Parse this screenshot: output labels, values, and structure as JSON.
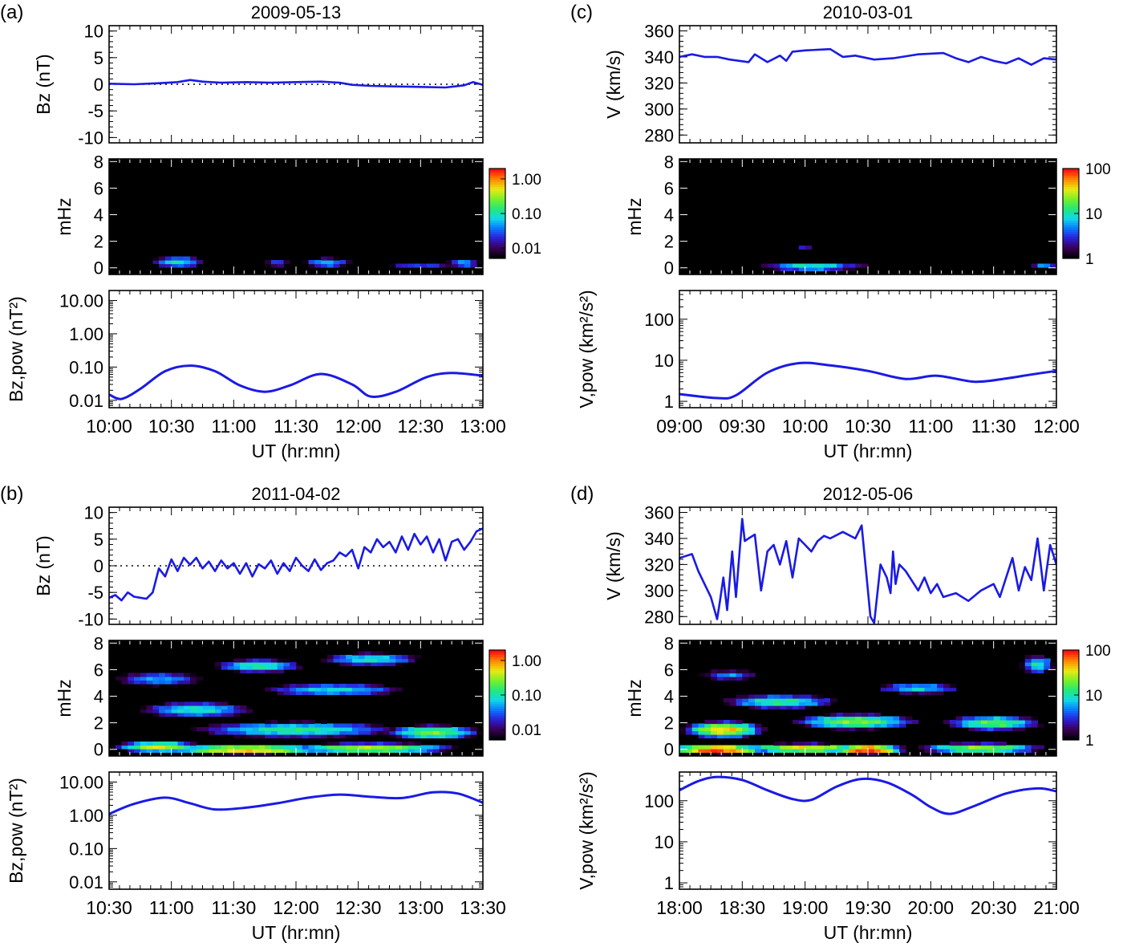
{
  "figure": {
    "time_xlabel": "UT (hr:mn)",
    "freq_ylabel": "mHz",
    "freq_ticks": [
      0,
      2,
      4,
      6,
      8
    ],
    "freq_ylim": [
      -0.5,
      8.2
    ],
    "colorbar_colors": [
      "#000000",
      "#3b0058",
      "#2a1fd6",
      "#0a78ff",
      "#10d9e8",
      "#22e87a",
      "#78f02a",
      "#e8ea14",
      "#ff8c00",
      "#ff1010"
    ],
    "line_color": "#1a1ae6"
  },
  "chart_data": [
    {
      "id": "a",
      "panel_label": "(a)",
      "title": "2009-05-13",
      "type": "line",
      "x_ticks": [
        "10:00",
        "10:30",
        "11:00",
        "11:30",
        "12:00",
        "12:30",
        "13:00"
      ],
      "x_range_hours": [
        10.0,
        13.0
      ],
      "top": {
        "ylabel": "Bz (nT)",
        "yticks": [
          -10,
          -5,
          0,
          5,
          10
        ],
        "ylim": [
          -11,
          11
        ],
        "zero_line": true,
        "x_hours": [
          10.0,
          10.2,
          10.4,
          10.55,
          10.65,
          10.75,
          10.9,
          11.1,
          11.3,
          11.5,
          11.7,
          11.85,
          11.95,
          12.1,
          12.3,
          12.5,
          12.7,
          12.85,
          12.92,
          13.0
        ],
        "values": [
          0.1,
          0.0,
          0.2,
          0.4,
          0.8,
          0.5,
          0.3,
          0.4,
          0.3,
          0.4,
          0.5,
          0.3,
          -0.1,
          -0.3,
          -0.4,
          -0.5,
          -0.6,
          -0.2,
          0.4,
          -0.1
        ]
      },
      "spectrogram": {
        "colorbar_ticks": [
          "1.00",
          "0.10",
          "0.01"
        ],
        "colorbar_log_range": [
          -2.3,
          0.3
        ],
        "blobs": [
          {
            "t": 10.55,
            "f": 0.45,
            "sigma_t": 0.22,
            "sigma_f": 0.45,
            "log": -1.05
          },
          {
            "t": 11.35,
            "f": 0.35,
            "sigma_t": 0.15,
            "sigma_f": 0.35,
            "log": -1.6
          },
          {
            "t": 11.75,
            "f": 0.4,
            "sigma_t": 0.2,
            "sigma_f": 0.4,
            "log": -1.2
          },
          {
            "t": 12.5,
            "f": 0.2,
            "sigma_t": 0.35,
            "sigma_f": 0.3,
            "log": -1.6
          },
          {
            "t": 12.85,
            "f": 0.35,
            "sigma_t": 0.15,
            "sigma_f": 0.35,
            "log": -1.25
          }
        ]
      },
      "power": {
        "ylabel": "Bz,pow (nT²)",
        "log_ticks": [
          "10.00",
          "1.00",
          "0.10",
          "0.01"
        ],
        "log_tick_values": [
          10,
          1,
          0.1,
          0.01
        ],
        "ylim": [
          0.006,
          20
        ],
        "x_hours": [
          10.0,
          10.1,
          10.25,
          10.45,
          10.65,
          10.85,
          11.05,
          11.25,
          11.45,
          11.7,
          11.95,
          12.1,
          12.3,
          12.55,
          12.75,
          13.0
        ],
        "values": [
          0.015,
          0.011,
          0.022,
          0.075,
          0.11,
          0.075,
          0.028,
          0.018,
          0.028,
          0.062,
          0.03,
          0.013,
          0.018,
          0.05,
          0.066,
          0.055
        ]
      }
    },
    {
      "id": "c",
      "panel_label": "(c)",
      "title": "2010-03-01",
      "type": "line",
      "x_ticks": [
        "09:00",
        "09:30",
        "10:00",
        "10:30",
        "11:00",
        "11:30",
        "12:00"
      ],
      "x_range_hours": [
        9.0,
        12.0
      ],
      "top": {
        "ylabel": "V (km/s)",
        "yticks": [
          280,
          300,
          320,
          340,
          360
        ],
        "ylim": [
          274,
          364
        ],
        "zero_line": false,
        "x_hours": [
          9.0,
          9.1,
          9.2,
          9.3,
          9.4,
          9.55,
          9.6,
          9.7,
          9.8,
          9.85,
          9.9,
          10.0,
          10.2,
          10.3,
          10.4,
          10.55,
          10.7,
          10.9,
          11.1,
          11.2,
          11.3,
          11.4,
          11.5,
          11.6,
          11.7,
          11.8,
          11.9,
          12.0
        ],
        "values": [
          340,
          342,
          340,
          340,
          338,
          336,
          342,
          336,
          341,
          337,
          344,
          345,
          346,
          340,
          341,
          338,
          339,
          342,
          343,
          339,
          336,
          340,
          337,
          335,
          339,
          334,
          339,
          338
        ]
      },
      "spectrogram": {
        "colorbar_ticks": [
          "100",
          "10",
          "1"
        ],
        "colorbar_log_range": [
          0.0,
          2.0
        ],
        "blobs": [
          {
            "t": 10.05,
            "f": 0.1,
            "sigma_t": 0.45,
            "sigma_f": 0.35,
            "log": 1.05
          },
          {
            "t": 10.35,
            "f": 0.1,
            "sigma_t": 0.25,
            "sigma_f": 0.3,
            "log": 0.55
          },
          {
            "t": 10.0,
            "f": 1.6,
            "sigma_t": 0.12,
            "sigma_f": 0.22,
            "log": 0.45
          },
          {
            "t": 11.9,
            "f": 0.15,
            "sigma_t": 0.15,
            "sigma_f": 0.3,
            "log": 0.7
          }
        ]
      },
      "power": {
        "ylabel": "V,pow (km²/s²)",
        "log_ticks": [
          "100",
          "10",
          "1"
        ],
        "log_tick_values": [
          100,
          10,
          1
        ],
        "ylim": [
          0.7,
          500
        ],
        "x_hours": [
          9.0,
          9.3,
          9.45,
          9.7,
          9.95,
          10.2,
          10.5,
          10.8,
          11.05,
          11.35,
          11.6,
          11.8,
          12.0
        ],
        "values": [
          1.5,
          1.2,
          1.4,
          5,
          8.5,
          7.5,
          5.5,
          3.5,
          4.2,
          3.0,
          3.6,
          4.5,
          5.5
        ]
      }
    },
    {
      "id": "b",
      "panel_label": "(b)",
      "title": "2011-04-02",
      "type": "line",
      "x_ticks": [
        "10:30",
        "11:00",
        "11:30",
        "12:00",
        "12:30",
        "13:00",
        "13:30"
      ],
      "x_range_hours": [
        10.5,
        13.5
      ],
      "top": {
        "ylabel": "Bz (nT)",
        "yticks": [
          -10,
          -5,
          0,
          5,
          10
        ],
        "ylim": [
          -11,
          11
        ],
        "zero_line": true,
        "x_hours": [
          10.5,
          10.55,
          10.6,
          10.65,
          10.7,
          10.75,
          10.8,
          10.85,
          10.9,
          10.95,
          11.0,
          11.05,
          11.1,
          11.15,
          11.2,
          11.25,
          11.3,
          11.35,
          11.4,
          11.45,
          11.5,
          11.55,
          11.6,
          11.65,
          11.7,
          11.75,
          11.8,
          11.85,
          11.9,
          11.95,
          12.0,
          12.05,
          12.1,
          12.15,
          12.2,
          12.25,
          12.3,
          12.35,
          12.4,
          12.45,
          12.5,
          12.55,
          12.6,
          12.65,
          12.7,
          12.75,
          12.8,
          12.85,
          12.9,
          12.95,
          13.0,
          13.05,
          13.1,
          13.15,
          13.2,
          13.25,
          13.3,
          13.35,
          13.4,
          13.45,
          13.5
        ],
        "values": [
          -6,
          -5.5,
          -6.5,
          -5,
          -5.8,
          -6,
          -6.2,
          -5,
          -0.5,
          -2,
          1.2,
          -1,
          1.5,
          0.2,
          1.5,
          -0.5,
          0.8,
          -1,
          1,
          -0.5,
          0.5,
          -1.5,
          0.5,
          -2,
          0.3,
          -0.5,
          1,
          -1.5,
          0.5,
          -1,
          1.5,
          0,
          -1,
          1.2,
          -0.8,
          0.5,
          1,
          2.5,
          1.8,
          3,
          -0.5,
          3.5,
          2.5,
          5,
          3.5,
          4.5,
          2.5,
          5.5,
          3,
          6,
          4,
          5.5,
          2.5,
          5,
          1,
          4.5,
          5,
          3,
          4.5,
          6.5,
          7
        ]
      },
      "spectrogram": {
        "colorbar_ticks": [
          "1.00",
          "0.10",
          "0.01"
        ],
        "colorbar_log_range": [
          -2.3,
          0.3
        ],
        "blobs": [
          {
            "t": 11.6,
            "f": 0.0,
            "sigma_t": 0.55,
            "sigma_f": 0.3,
            "log": -0.1
          },
          {
            "t": 12.6,
            "f": 0.1,
            "sigma_t": 0.6,
            "sigma_f": 0.35,
            "log": -0.4
          },
          {
            "t": 10.9,
            "f": 0.2,
            "sigma_t": 0.3,
            "sigma_f": 0.35,
            "log": -0.3
          },
          {
            "t": 12.0,
            "f": 1.5,
            "sigma_t": 0.8,
            "sigma_f": 0.6,
            "log": -0.9
          },
          {
            "t": 13.1,
            "f": 1.3,
            "sigma_t": 0.35,
            "sigma_f": 0.5,
            "log": -0.6
          },
          {
            "t": 11.2,
            "f": 3.0,
            "sigma_t": 0.45,
            "sigma_f": 0.6,
            "log": -1.0
          },
          {
            "t": 12.3,
            "f": 4.5,
            "sigma_t": 0.6,
            "sigma_f": 0.5,
            "log": -1.1
          },
          {
            "t": 11.7,
            "f": 6.3,
            "sigma_t": 0.35,
            "sigma_f": 0.5,
            "log": -0.9
          },
          {
            "t": 12.6,
            "f": 6.8,
            "sigma_t": 0.4,
            "sigma_f": 0.5,
            "log": -1.0
          },
          {
            "t": 10.9,
            "f": 5.3,
            "sigma_t": 0.4,
            "sigma_f": 0.6,
            "log": -1.3
          }
        ]
      },
      "power": {
        "ylabel": "Bz,pow (nT²)",
        "log_ticks": [
          "10.00",
          "1.00",
          "0.10",
          "0.01"
        ],
        "log_tick_values": [
          10,
          1,
          0.1,
          0.01
        ],
        "ylim": [
          0.006,
          20
        ],
        "x_hours": [
          10.5,
          10.7,
          10.95,
          11.15,
          11.35,
          11.6,
          11.85,
          12.1,
          12.35,
          12.6,
          12.85,
          13.1,
          13.3,
          13.5
        ],
        "values": [
          1.1,
          2.2,
          3.4,
          2.3,
          1.5,
          1.7,
          2.3,
          3.4,
          4.2,
          3.6,
          3.3,
          4.9,
          4.5,
          2.4
        ]
      }
    },
    {
      "id": "d",
      "panel_label": "(d)",
      "title": "2012-05-06",
      "type": "line",
      "x_ticks": [
        "18:00",
        "18:30",
        "19:00",
        "19:30",
        "20:00",
        "20:30",
        "21:00"
      ],
      "x_range_hours": [
        18.0,
        21.0
      ],
      "top": {
        "ylabel": "V (km/s)",
        "yticks": [
          280,
          300,
          320,
          340,
          360
        ],
        "ylim": [
          274,
          364
        ],
        "zero_line": false,
        "x_hours": [
          18.0,
          18.1,
          18.15,
          18.2,
          18.25,
          18.3,
          18.32,
          18.35,
          18.38,
          18.42,
          18.45,
          18.5,
          18.52,
          18.55,
          18.6,
          18.65,
          18.7,
          18.75,
          18.8,
          18.85,
          18.9,
          18.95,
          19.0,
          19.05,
          19.1,
          19.15,
          19.2,
          19.3,
          19.4,
          19.45,
          19.5,
          19.52,
          19.55,
          19.6,
          19.65,
          19.68,
          19.7,
          19.72,
          19.75,
          19.8,
          19.9,
          19.95,
          20.0,
          20.05,
          20.1,
          20.2,
          20.3,
          20.4,
          20.5,
          20.55,
          20.6,
          20.65,
          20.7,
          20.75,
          20.8,
          20.85,
          20.9,
          20.95,
          21.0
        ],
        "values": [
          325,
          328,
          315,
          305,
          295,
          278,
          290,
          310,
          285,
          330,
          295,
          355,
          338,
          340,
          343,
          300,
          330,
          335,
          320,
          338,
          310,
          340,
          335,
          330,
          338,
          342,
          340,
          345,
          340,
          350,
          300,
          280,
          275,
          320,
          310,
          298,
          330,
          305,
          320,
          315,
          300,
          310,
          298,
          305,
          295,
          298,
          292,
          300,
          305,
          295,
          310,
          325,
          300,
          318,
          308,
          340,
          300,
          335,
          320
        ]
      },
      "spectrogram": {
        "colorbar_ticks": [
          "100",
          "10",
          "1"
        ],
        "colorbar_log_range": [
          0.0,
          2.0
        ],
        "blobs": [
          {
            "t": 18.3,
            "f": 0.0,
            "sigma_t": 0.35,
            "sigma_f": 0.3,
            "log": 2.05
          },
          {
            "t": 19.5,
            "f": 0.0,
            "sigma_t": 0.25,
            "sigma_f": 0.3,
            "log": 2.1
          },
          {
            "t": 19.0,
            "f": 0.1,
            "sigma_t": 0.5,
            "sigma_f": 0.35,
            "log": 1.6
          },
          {
            "t": 20.4,
            "f": 0.1,
            "sigma_t": 0.5,
            "sigma_f": 0.4,
            "log": 1.4
          },
          {
            "t": 18.35,
            "f": 1.5,
            "sigma_t": 0.3,
            "sigma_f": 0.6,
            "log": 1.65
          },
          {
            "t": 19.4,
            "f": 2.1,
            "sigma_t": 0.5,
            "sigma_f": 0.6,
            "log": 1.35
          },
          {
            "t": 20.5,
            "f": 2.0,
            "sigma_t": 0.4,
            "sigma_f": 0.6,
            "log": 1.25
          },
          {
            "t": 18.8,
            "f": 3.6,
            "sigma_t": 0.5,
            "sigma_f": 0.6,
            "log": 1.1
          },
          {
            "t": 19.9,
            "f": 4.6,
            "sigma_t": 0.4,
            "sigma_f": 0.5,
            "log": 0.9
          },
          {
            "t": 18.4,
            "f": 5.6,
            "sigma_t": 0.3,
            "sigma_f": 0.5,
            "log": 0.7
          },
          {
            "t": 20.85,
            "f": 6.4,
            "sigma_t": 0.15,
            "sigma_f": 0.8,
            "log": 1.0
          }
        ]
      },
      "power": {
        "ylabel": "V,pow (km²/s²)",
        "log_ticks": [
          "100",
          "10",
          "1"
        ],
        "log_tick_values": [
          100,
          10,
          1
        ],
        "ylim": [
          0.7,
          500
        ],
        "x_hours": [
          18.0,
          18.15,
          18.3,
          18.5,
          18.7,
          18.9,
          19.05,
          19.25,
          19.45,
          19.65,
          19.85,
          20.0,
          20.15,
          20.35,
          20.6,
          20.85,
          21.0
        ],
        "values": [
          180,
          300,
          380,
          320,
          180,
          110,
          105,
          220,
          340,
          280,
          140,
          70,
          48,
          75,
          150,
          200,
          170
        ]
      }
    }
  ]
}
